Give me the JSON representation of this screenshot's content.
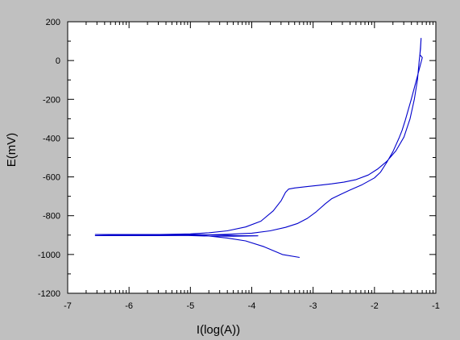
{
  "chart_data": {
    "type": "line",
    "title": "",
    "xlabel": "I(log(A))",
    "ylabel": "E(mV)",
    "xlim": [
      -7,
      -1
    ],
    "ylim": [
      -1200,
      200
    ],
    "xticks": [
      -7,
      -6,
      -5,
      -4,
      -3,
      -2,
      -1
    ],
    "yticks": [
      200,
      0,
      -200,
      -400,
      -600,
      -800,
      -1000,
      -1200
    ],
    "x_tick_labels": [
      "-7",
      "-6",
      "-5",
      "-4",
      "-3",
      "-2",
      "-1"
    ],
    "y_tick_labels": [
      "200",
      "0",
      "-200",
      "-400",
      "-600",
      "-800",
      "-1000",
      "-1200"
    ],
    "grid": false,
    "x_minor_ticks_per_decade": "log",
    "plot_background": "#ffffff",
    "page_background": "#c0c0c0",
    "series": [
      {
        "color": "#0000cc",
        "points": [
          [
            -3.22,
            -1015
          ],
          [
            -3.5,
            -1000
          ],
          [
            -3.8,
            -960
          ],
          [
            -4.1,
            -930
          ],
          [
            -4.4,
            -915
          ],
          [
            -4.7,
            -905
          ],
          [
            -5.0,
            -900
          ],
          [
            -5.5,
            -898
          ],
          [
            -6.0,
            -897
          ],
          [
            -6.55,
            -897
          ],
          [
            -6.0,
            -897
          ],
          [
            -5.5,
            -897
          ],
          [
            -5.0,
            -894
          ],
          [
            -4.7,
            -888
          ],
          [
            -4.4,
            -878
          ],
          [
            -4.1,
            -858
          ],
          [
            -3.85,
            -828
          ],
          [
            -3.65,
            -775
          ],
          [
            -3.52,
            -722
          ],
          [
            -3.45,
            -680
          ],
          [
            -3.4,
            -663
          ],
          [
            -3.3,
            -657
          ],
          [
            -3.1,
            -650
          ],
          [
            -2.9,
            -643
          ],
          [
            -2.7,
            -636
          ],
          [
            -2.5,
            -627
          ],
          [
            -2.3,
            -614
          ],
          [
            -2.1,
            -590
          ],
          [
            -1.95,
            -560
          ],
          [
            -1.8,
            -520
          ],
          [
            -1.65,
            -465
          ],
          [
            -1.52,
            -395
          ],
          [
            -1.42,
            -300
          ],
          [
            -1.35,
            -200
          ],
          [
            -1.3,
            -100
          ],
          [
            -1.27,
            0
          ],
          [
            -1.25,
            60
          ],
          [
            -1.24,
            115
          ],
          [
            -1.25,
            70
          ],
          [
            -1.26,
            30
          ],
          [
            -1.22,
            15
          ],
          [
            -1.3,
            -80
          ],
          [
            -1.4,
            -200
          ],
          [
            -1.5,
            -310
          ],
          [
            -1.55,
            -360
          ],
          [
            -1.6,
            -400
          ],
          [
            -1.7,
            -470
          ],
          [
            -1.8,
            -525
          ],
          [
            -1.9,
            -575
          ],
          [
            -2.0,
            -605
          ],
          [
            -2.2,
            -640
          ],
          [
            -2.4,
            -668
          ],
          [
            -2.55,
            -690
          ],
          [
            -2.7,
            -713
          ],
          [
            -2.8,
            -738
          ],
          [
            -2.95,
            -780
          ],
          [
            -3.1,
            -815
          ],
          [
            -3.25,
            -840
          ],
          [
            -3.45,
            -860
          ],
          [
            -3.7,
            -878
          ],
          [
            -4.0,
            -890
          ],
          [
            -4.4,
            -896
          ],
          [
            -4.8,
            -900
          ],
          [
            -5.2,
            -902
          ],
          [
            -5.6,
            -903
          ],
          [
            -6.0,
            -903
          ],
          [
            -6.55,
            -903
          ],
          [
            -6.0,
            -900
          ],
          [
            -5.5,
            -898
          ],
          [
            -5.0,
            -897
          ],
          [
            -4.5,
            -900
          ],
          [
            -4.2,
            -903
          ],
          [
            -3.9,
            -904
          ],
          [
            -4.3,
            -906
          ],
          [
            -4.7,
            -905
          ],
          [
            -5.2,
            -901
          ]
        ]
      }
    ]
  }
}
